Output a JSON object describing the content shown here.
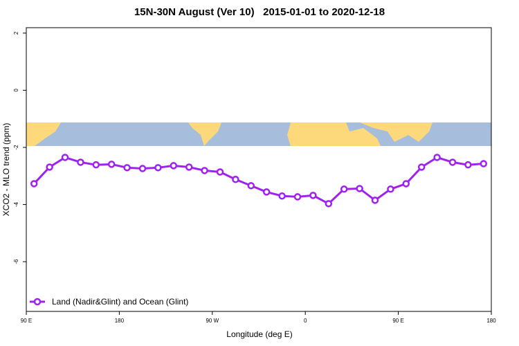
{
  "chart_data": {
    "type": "line",
    "title": "15N-30N August (Ver 10)   2015-01-01 to 2020-12-18",
    "xlabel": "Longitude (deg E)",
    "ylabel": "XCO2 - MLO trend (ppm)",
    "x": [
      97.5,
      112.5,
      127.5,
      142.5,
      157.5,
      172.5,
      187.5,
      202.5,
      217.5,
      232.5,
      247.5,
      262.5,
      277.5,
      292.5,
      307.5,
      322.5,
      337.5,
      352.5,
      367.5,
      382.5,
      397.5,
      412.5,
      427.5,
      442.5,
      457.5,
      472.5,
      487.5,
      502.5,
      517.5,
      532.5
    ],
    "series": [
      {
        "name": "Land (Nadir&Glint) and Ocean (Glint)",
        "color": "#a020f0",
        "values": [
          -3.27,
          -2.69,
          -2.35,
          -2.52,
          -2.61,
          -2.59,
          -2.71,
          -2.74,
          -2.71,
          -2.64,
          -2.69,
          -2.81,
          -2.86,
          -3.12,
          -3.34,
          -3.56,
          -3.7,
          -3.73,
          -3.68,
          -3.97,
          -3.46,
          -3.44,
          -3.85,
          -3.46,
          -3.27,
          -2.69,
          -2.35,
          -2.52,
          -2.61,
          -2.57
        ]
      }
    ],
    "xlim": [
      90,
      540
    ],
    "xticks": [
      {
        "value": 90,
        "label": "90 E"
      },
      180,
      {
        "value": 270,
        "label": "90 W"
      },
      {
        "value": 360,
        "label": "0"
      },
      {
        "value": 450,
        "label": "90 E"
      },
      {
        "value": 540,
        "label": "180"
      }
    ],
    "ylim": [
      -7.74,
      2.19
    ],
    "yticks": [
      -6,
      -4,
      -2,
      0,
      2
    ],
    "legend": "bottom-left"
  }
}
